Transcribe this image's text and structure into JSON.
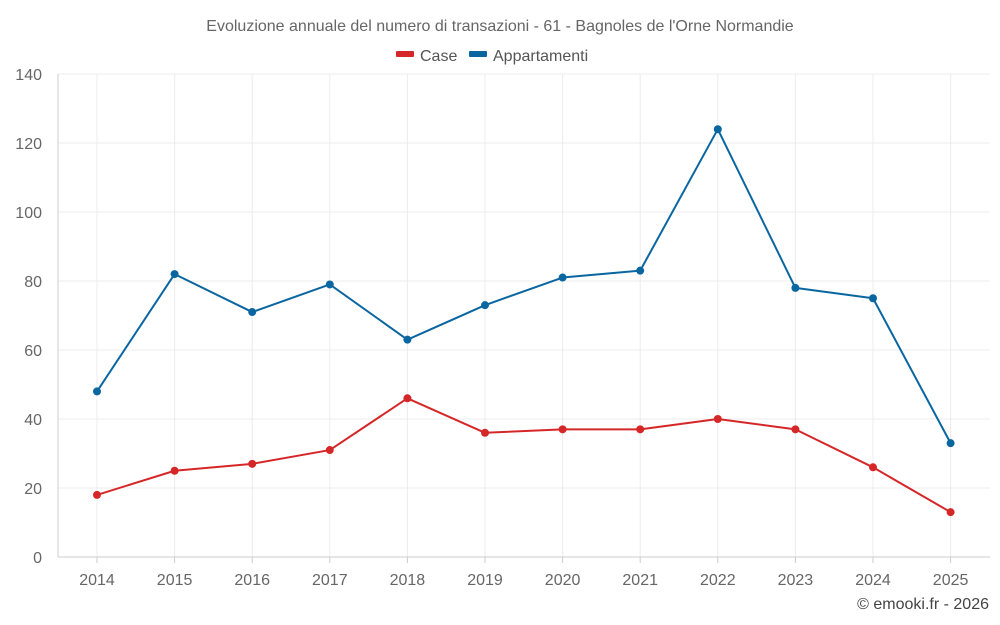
{
  "chart_data": {
    "type": "line",
    "title": "Evoluzione annuale del numero di transazioni - 61 - Bagnoles de l'Orne Normandie",
    "categories": [
      "2014",
      "2015",
      "2016",
      "2017",
      "2018",
      "2019",
      "2020",
      "2021",
      "2022",
      "2023",
      "2024",
      "2025"
    ],
    "series": [
      {
        "name": "Case",
        "color": "#d62728",
        "values": [
          18,
          25,
          27,
          31,
          46,
          36,
          37,
          37,
          40,
          37,
          26,
          13
        ]
      },
      {
        "name": "Appartamenti",
        "color": "#0a66a0",
        "values": [
          48,
          82,
          71,
          79,
          63,
          73,
          81,
          83,
          124,
          78,
          75,
          33
        ]
      }
    ],
    "yticks": [
      0,
      20,
      40,
      60,
      80,
      100,
      120,
      140
    ],
    "ylim": [
      0,
      140
    ],
    "xlabel": "",
    "ylabel": "",
    "grid": true,
    "legend_position": "top-center"
  },
  "credit": "© emooki.fr - 2026"
}
